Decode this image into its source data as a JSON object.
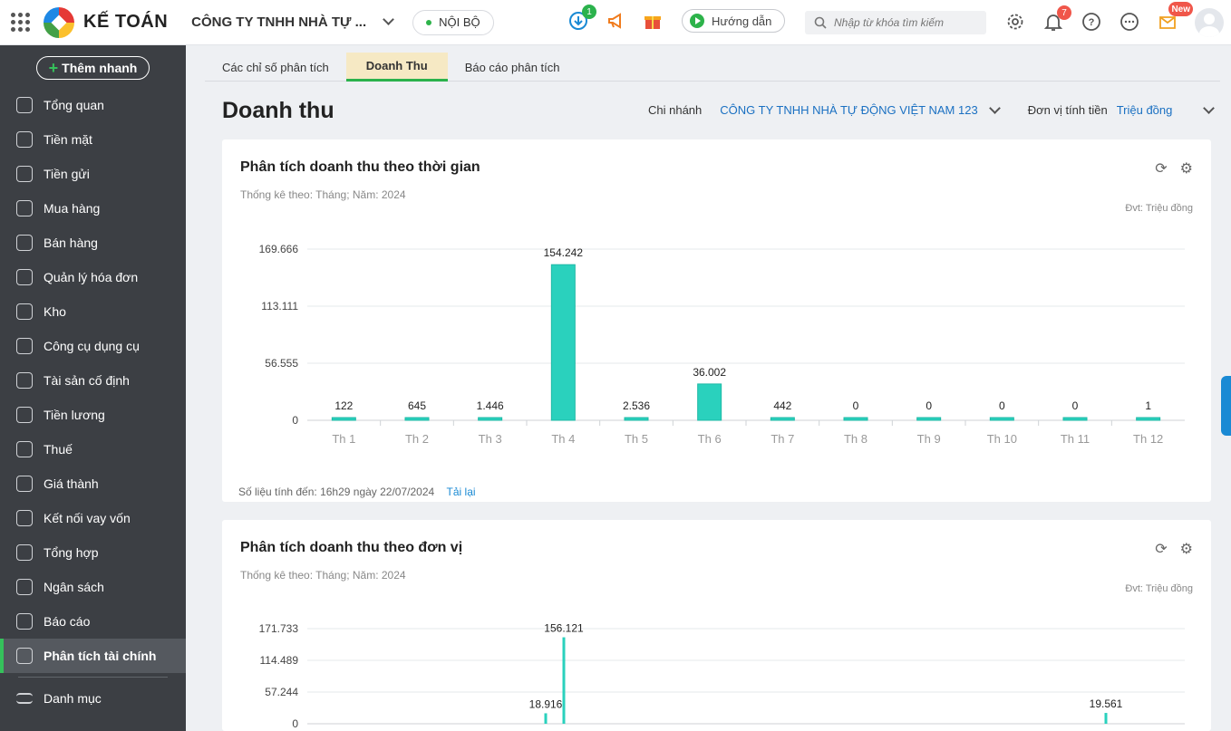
{
  "topbar": {
    "brand": "KẾ TOÁN",
    "company": "CÔNG TY TNHH NHÀ TỰ ...",
    "scope": "NỘI BỘ",
    "download_badge": "1",
    "guide_label": "Hướng dẫn",
    "search_placeholder": "Nhập từ khóa tìm kiếm",
    "notify_badge": "7",
    "new_badge": "New"
  },
  "sidebar": {
    "quick_add": "Thêm nhanh",
    "items": [
      {
        "label": "Tổng quan"
      },
      {
        "label": "Tiền mặt"
      },
      {
        "label": "Tiền gửi"
      },
      {
        "label": "Mua hàng"
      },
      {
        "label": "Bán hàng"
      },
      {
        "label": "Quản lý hóa đơn"
      },
      {
        "label": "Kho"
      },
      {
        "label": "Công cụ dụng cụ"
      },
      {
        "label": "Tài sản cố định"
      },
      {
        "label": "Tiền lương"
      },
      {
        "label": "Thuế"
      },
      {
        "label": "Giá thành"
      },
      {
        "label": "Kết nối vay vốn"
      },
      {
        "label": "Tổng hợp"
      },
      {
        "label": "Ngân sách"
      },
      {
        "label": "Báo cáo"
      },
      {
        "label": "Phân tích tài chính"
      }
    ],
    "catalog": "Danh mục"
  },
  "tabs": [
    "Các chỉ số phân tích",
    "Doanh Thu",
    "Báo cáo phân tích"
  ],
  "page": {
    "title": "Doanh thu",
    "branch_label": "Chi nhánh",
    "branch_value": "CÔNG TY TNHH NHÀ TỰ ĐỘNG VIỆT NAM 123",
    "currency_label": "Đơn vị tính tiền",
    "currency_value": "Triệu đồng"
  },
  "card1": {
    "title": "Phân tích doanh thu theo thời gian",
    "subtitle": "Thống kê theo: Tháng; Năm: 2024",
    "unit": "Đvt: Triệu đồng",
    "footnote": "Số liệu tính đến: 16h29 ngày 22/07/2024",
    "reload": "Tải lại"
  },
  "card2": {
    "title": "Phân tích doanh thu theo đơn vị",
    "subtitle": "Thống kê theo: Tháng; Năm: 2024",
    "unit": "Đvt: Triệu đồng"
  },
  "chart_data": [
    {
      "type": "bar",
      "categories": [
        "Th 1",
        "Th 2",
        "Th 3",
        "Th 4",
        "Th 5",
        "Th 6",
        "Th 7",
        "Th 8",
        "Th 9",
        "Th 10",
        "Th 11",
        "Th 12"
      ],
      "values": [
        0.122,
        0.645,
        1.446,
        154.242,
        2.536,
        36.002,
        0.442,
        0,
        0,
        0,
        0,
        0.001
      ],
      "labels": [
        "122",
        "645",
        "1.446",
        "154.242",
        "2.536",
        "36.002",
        "442",
        "0",
        "0",
        "0",
        "0",
        "1"
      ],
      "yticks": [
        "0",
        "56.555",
        "113.111",
        "169.666"
      ],
      "ytick_values": [
        0,
        56.555,
        113.111,
        169.666
      ],
      "ylim": [
        0,
        169.666
      ],
      "grid": true,
      "color": "#2ad1bd"
    },
    {
      "type": "bar",
      "yticks": [
        "0",
        "57.244",
        "114.489",
        "171.733"
      ],
      "ytick_values": [
        0,
        57.244,
        114.489,
        171.733
      ],
      "ylim": [
        0,
        171.733
      ],
      "visible_labels": [
        "156.121",
        "18.916",
        "19.561"
      ],
      "peaks": [
        18.916,
        156.121,
        19.561
      ],
      "grid": true,
      "color": "#2ad1bd"
    }
  ]
}
